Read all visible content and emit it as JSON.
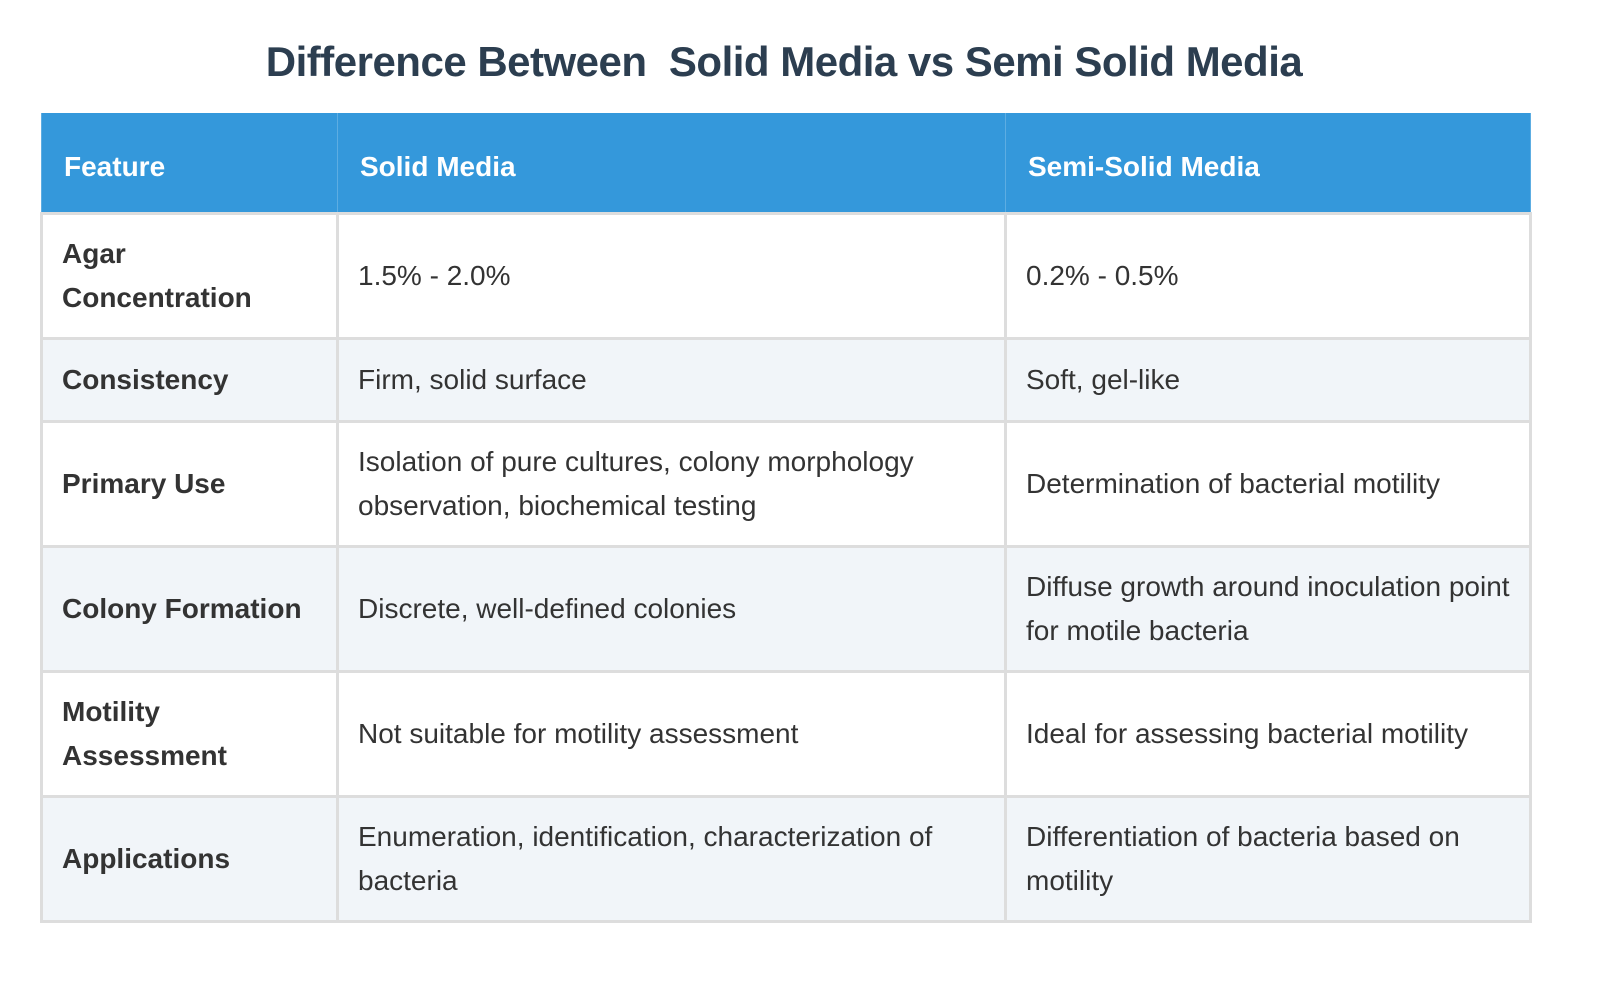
{
  "title": "Difference Between  Solid Media vs Semi Solid Media",
  "table": {
    "headers": [
      "Feature",
      "Solid Media",
      "Semi-Solid Media"
    ],
    "rows": [
      {
        "feature": "Agar Concentration",
        "solid": "1.5% - 2.0%",
        "semi": "0.2% - 0.5%"
      },
      {
        "feature": "Consistency",
        "solid": "Firm, solid surface",
        "semi": "Soft, gel-like"
      },
      {
        "feature": "Primary Use",
        "solid": "Isolation of pure cultures, colony morphology observation, biochemical testing",
        "semi": "Determination of bacterial motility"
      },
      {
        "feature": "Colony Formation",
        "solid": "Discrete, well-defined colonies",
        "semi": "Diffuse growth around inoculation point for motile bacteria"
      },
      {
        "feature": "Motility Assessment",
        "solid": "Not suitable for motility assessment",
        "semi": "Ideal for assessing bacterial motility"
      },
      {
        "feature": "Applications",
        "solid": "Enumeration, identification, characterization of bacteria",
        "semi": "Differentiation of bacteria based on motility"
      }
    ]
  },
  "colors": {
    "header_bg": "#3498db",
    "title": "#2c3e50",
    "alt_row": "#f1f5f9",
    "border": "#dddddd"
  }
}
